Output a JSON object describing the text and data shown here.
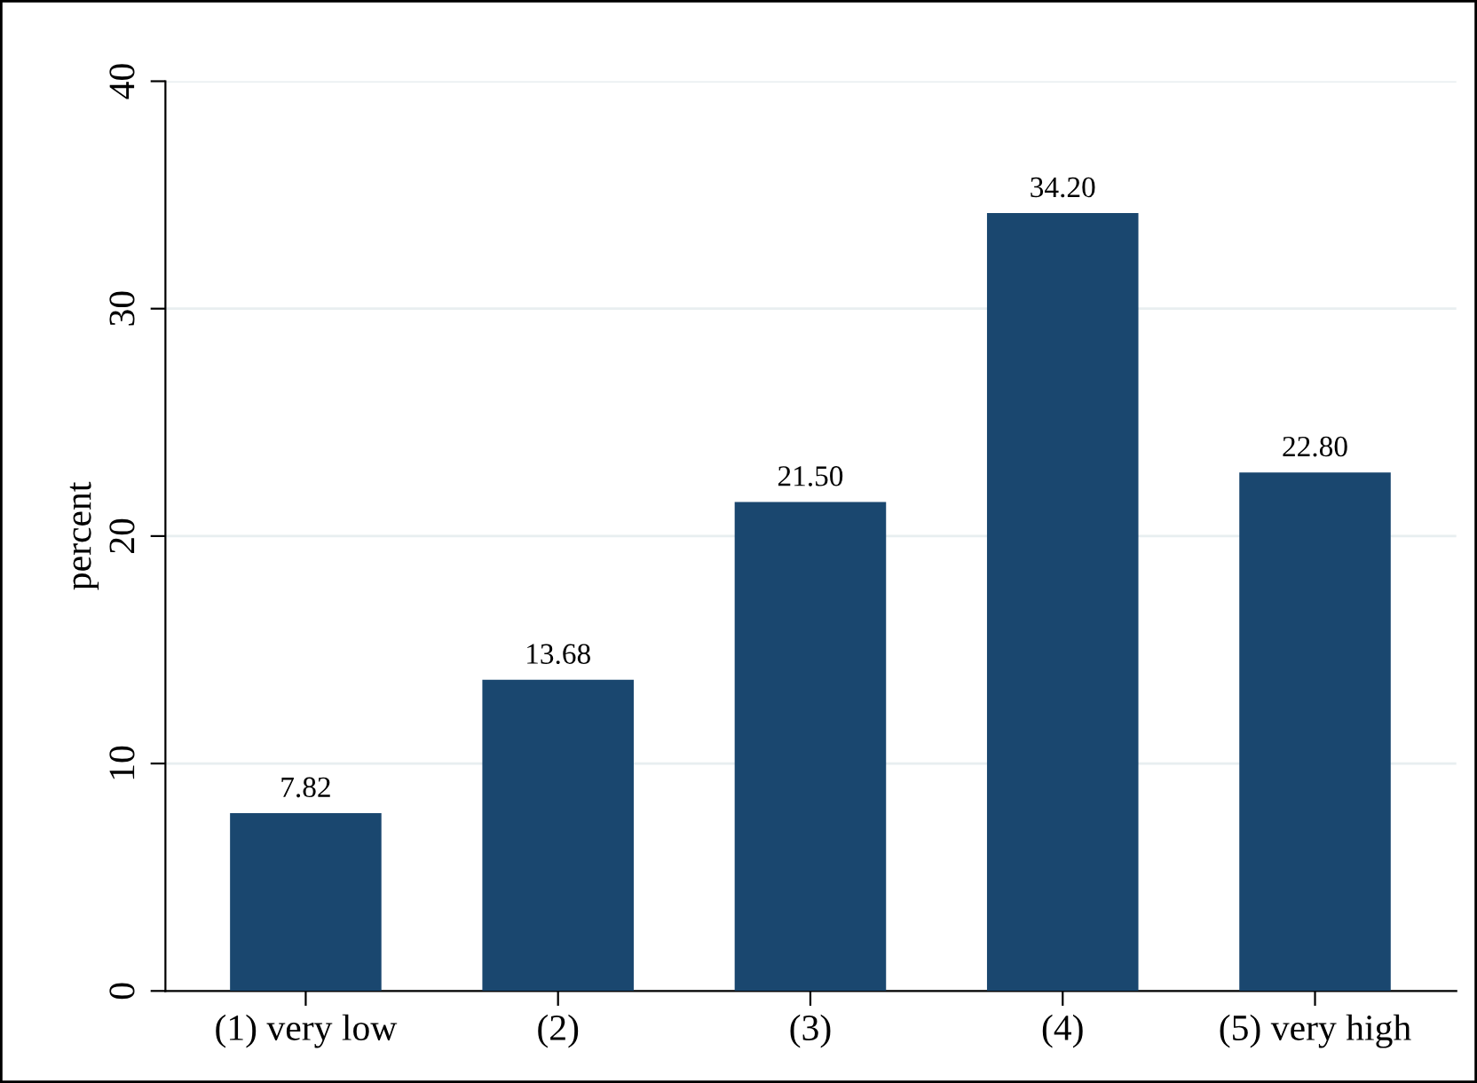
{
  "chart_data": {
    "type": "bar",
    "ylabel": "percent",
    "categories": [
      "(1) very low",
      "(2)",
      "(3)",
      "(4)",
      "(5) very high"
    ],
    "values": [
      7.82,
      13.68,
      21.5,
      34.2,
      22.8
    ],
    "value_labels": [
      "7.82",
      "13.68",
      "21.50",
      "34.20",
      "22.80"
    ],
    "color": "#1a476f",
    "ylim": [
      0,
      40
    ],
    "yticks": [
      0,
      10,
      20,
      30,
      40
    ],
    "grid": "y"
  }
}
